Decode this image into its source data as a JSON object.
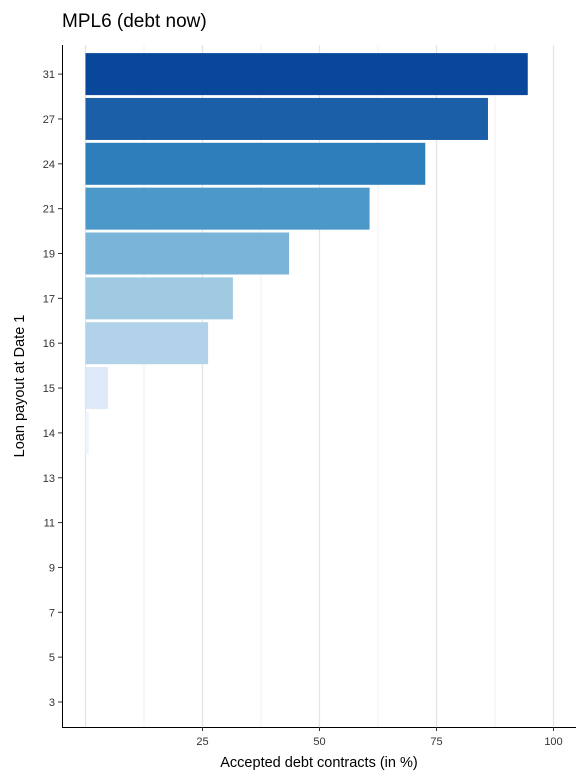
{
  "chart_data": {
    "type": "bar",
    "orientation": "horizontal",
    "title": "MPL6 (debt now)",
    "xlabel": "Accepted debt contracts (in %)",
    "ylabel": "Loan payout at Date 1",
    "categories": [
      "3",
      "5",
      "7",
      "9",
      "11",
      "13",
      "14",
      "15",
      "16",
      "17",
      "19",
      "21",
      "24",
      "27",
      "31"
    ],
    "values": [
      0,
      0,
      0,
      0,
      0,
      0,
      0.7,
      4.8,
      26.2,
      31.5,
      43.5,
      60.7,
      72.6,
      86.0,
      94.5
    ],
    "colors": [
      "#f7fbff",
      "#f7fbff",
      "#f7fbff",
      "#f7fbff",
      "#f7fbff",
      "#f7fbff",
      "#eef5fd",
      "#dde9f9",
      "#b1d2e8",
      "#a0cae2",
      "#7ab4d8",
      "#4a99c9",
      "#2e7ebc",
      "#1b5fa8",
      "#08479a"
    ],
    "xticks": [
      25,
      50,
      75,
      100
    ],
    "xlim": [
      -5,
      104
    ],
    "grid": "vertical major",
    "legend": "none"
  }
}
